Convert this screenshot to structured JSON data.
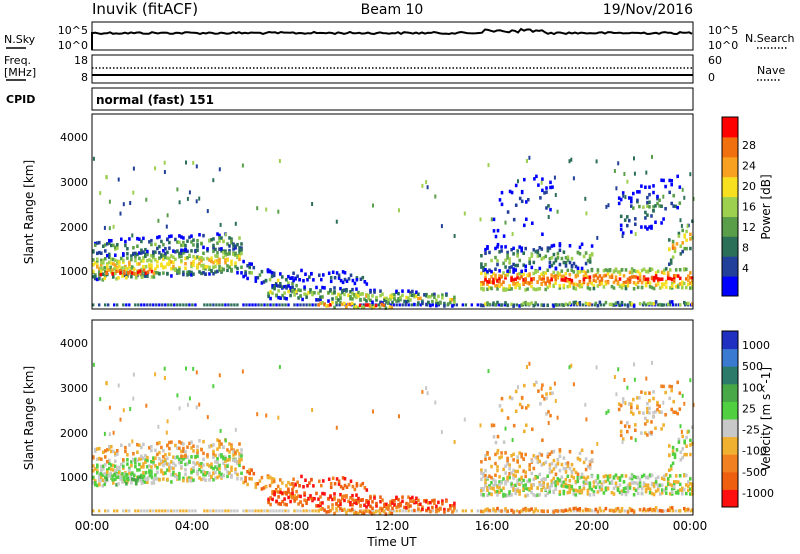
{
  "header": {
    "station": "Inuvik (fitACF)",
    "beam": "Beam 10",
    "date": "19/Nov/2016"
  },
  "strip_nsky": {
    "left_label": "N.Sky",
    "right_label": "N.Search",
    "left_ticks": [
      "10^5",
      "10^0"
    ],
    "right_ticks": [
      "10^5",
      "10^0"
    ]
  },
  "strip_freq": {
    "left_label_1": "Freq.",
    "left_label_2": "[MHz]",
    "right_label": "Nave",
    "left_ticks": [
      "18",
      "8"
    ],
    "right_ticks": [
      "60",
      "0"
    ]
  },
  "cpid": {
    "label": "CPID",
    "value": "normal (fast) 151"
  },
  "time_axis": {
    "label": "Time UT",
    "ticks": [
      "00:00",
      "04:00",
      "08:00",
      "12:00",
      "16:00",
      "20:00",
      "00:00"
    ]
  },
  "range_axis": {
    "label": "Slant Range [km]",
    "ticks": [
      "1000",
      "2000",
      "3000",
      "4000"
    ]
  },
  "chart_data": [
    {
      "type": "heatmap",
      "quantity": "power",
      "ylabel": "Slant Range [km]",
      "xlabel": "Time UT",
      "x_range_hours": [
        0,
        24
      ],
      "ylim": [
        180,
        4500
      ],
      "colorbar": {
        "label": "Power [dB]",
        "ticks": [
          "4",
          "8",
          "12",
          "16",
          "20",
          "24",
          "28"
        ],
        "colors": [
          "#0000ff",
          "#22409a",
          "#2c6f59",
          "#5a9e4a",
          "#9ed050",
          "#f7e020",
          "#f8a020",
          "#f07010",
          "#ff0000"
        ]
      }
    },
    {
      "type": "heatmap",
      "quantity": "velocity",
      "ylabel": "Slant Range [km]",
      "xlabel": "Time UT",
      "x_range_hours": [
        0,
        24
      ],
      "ylim": [
        180,
        4500
      ],
      "colorbar": {
        "label": "Velocity [m s^-1]",
        "ticks": [
          "1000",
          "500",
          "100",
          "25",
          "-25",
          "-100",
          "-500",
          "-1000"
        ],
        "colors": [
          "#2030c0",
          "#3a7ad0",
          "#2c7a6a",
          "#48a848",
          "#50d040",
          "#c8c8c8",
          "#f0b030",
          "#f08020",
          "#ee6010",
          "#ff1010"
        ]
      }
    }
  ]
}
